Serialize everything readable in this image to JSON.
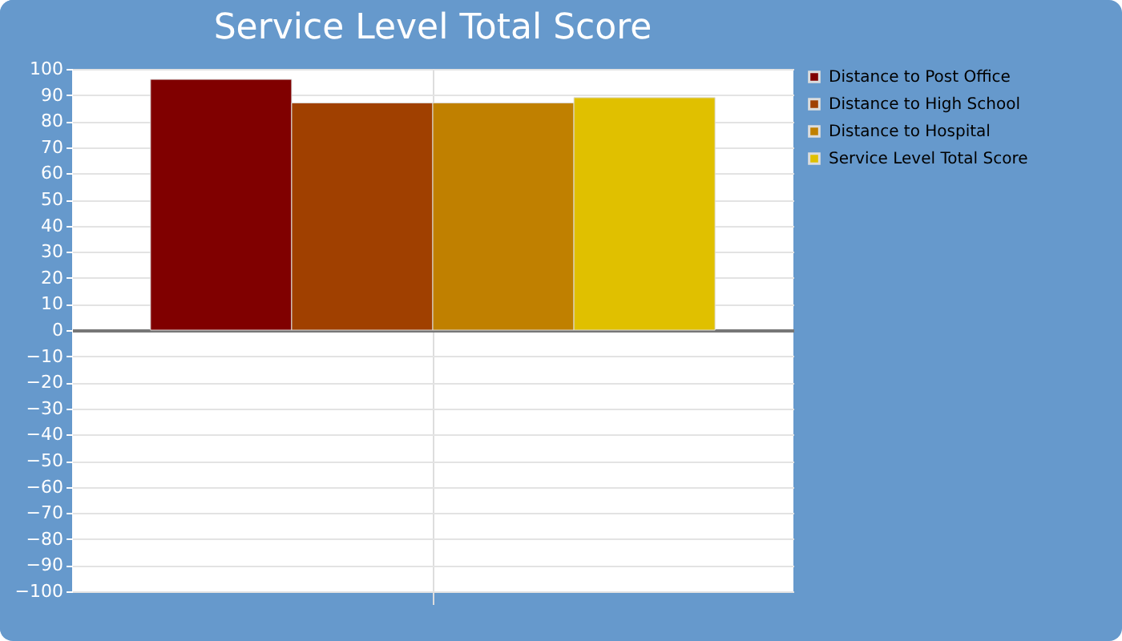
{
  "chart_data": {
    "type": "bar",
    "title": "Service Level Total Score",
    "categories": [
      null
    ],
    "series": [
      {
        "name": "Distance to Post Office",
        "color": "#800000",
        "values": [
          96
        ]
      },
      {
        "name": "Distance to High School",
        "color": "#a04000",
        "values": [
          87
        ]
      },
      {
        "name": "Distance to Hospital",
        "color": "#c08000",
        "values": [
          87
        ]
      },
      {
        "name": "Service Level Total Score",
        "color": "#e0c000",
        "values": [
          89
        ]
      }
    ],
    "ylim": [
      -100,
      100
    ],
    "yticks": [
      -100,
      -90,
      -80,
      -70,
      -60,
      -50,
      -40,
      -30,
      -20,
      -10,
      0,
      10,
      20,
      30,
      40,
      50,
      60,
      70,
      80,
      90,
      100
    ],
    "grid": true,
    "legend": "top right"
  }
}
